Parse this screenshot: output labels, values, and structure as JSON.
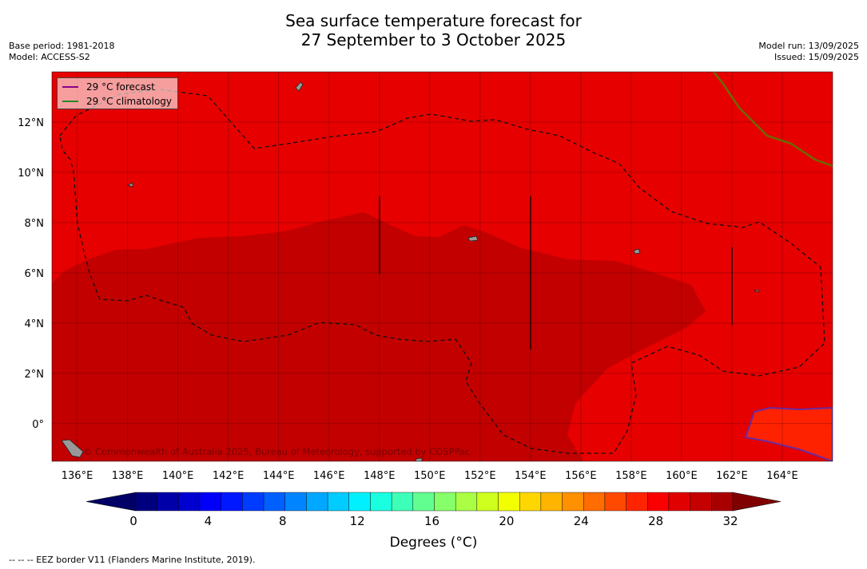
{
  "title_line1": "Sea surface temperature forecast for",
  "title_line2": "27 September to 3 October 2025",
  "meta_left": [
    "Base period: 1981-2018",
    "Model: ACCESS-S2"
  ],
  "meta_right": [
    "Model run: 13/09/2025",
    "Issued: 15/09/2025"
  ],
  "legend": [
    {
      "label": "29 °C  forecast",
      "color": "#8b008b"
    },
    {
      "label": "29 °C  climatology",
      "color": "#228b22"
    }
  ],
  "axes": {
    "lon_ticks": [
      "136°E",
      "138°E",
      "140°E",
      "142°E",
      "144°E",
      "146°E",
      "148°E",
      "150°E",
      "152°E",
      "154°E",
      "156°E",
      "158°E",
      "160°E",
      "162°E",
      "164°E"
    ],
    "lat_ticks": [
      "12°N",
      "10°N",
      "8°N",
      "6°N",
      "4°N",
      "2°N",
      "0°"
    ],
    "lon_values": [
      136,
      138,
      140,
      142,
      144,
      146,
      148,
      150,
      152,
      154,
      156,
      158,
      160,
      162,
      164
    ],
    "lat_values": [
      12,
      10,
      8,
      6,
      4,
      2,
      0
    ],
    "lon_range": [
      135,
      166
    ],
    "lat_range": [
      -1.5,
      14
    ]
  },
  "colorbar": {
    "ticks": [
      "0",
      "4",
      "8",
      "12",
      "16",
      "20",
      "24",
      "28",
      "32"
    ],
    "label": "Degrees (°C)",
    "colors": [
      "#00007f",
      "#0000a8",
      "#0000d1",
      "#0000fa",
      "#0018ff",
      "#003cff",
      "#0060ff",
      "#0084ff",
      "#00a8ff",
      "#00ccff",
      "#00f0ff",
      "#1affe0",
      "#3effb8",
      "#62ff90",
      "#86ff6a",
      "#aaff44",
      "#ceff1e",
      "#f2ff00",
      "#ffd700",
      "#ffb400",
      "#ff9000",
      "#ff6c00",
      "#ff4800",
      "#ff2400",
      "#fa0000",
      "#e00000",
      "#c40000",
      "#a80000"
    ]
  },
  "credit": "© Commonwealth of Australia 2025, Bureau of Meteorology, supported by COSPPac",
  "footnote": "--  --  -- EEZ border V11 (Flanders Marine Institute, 2019)."
}
